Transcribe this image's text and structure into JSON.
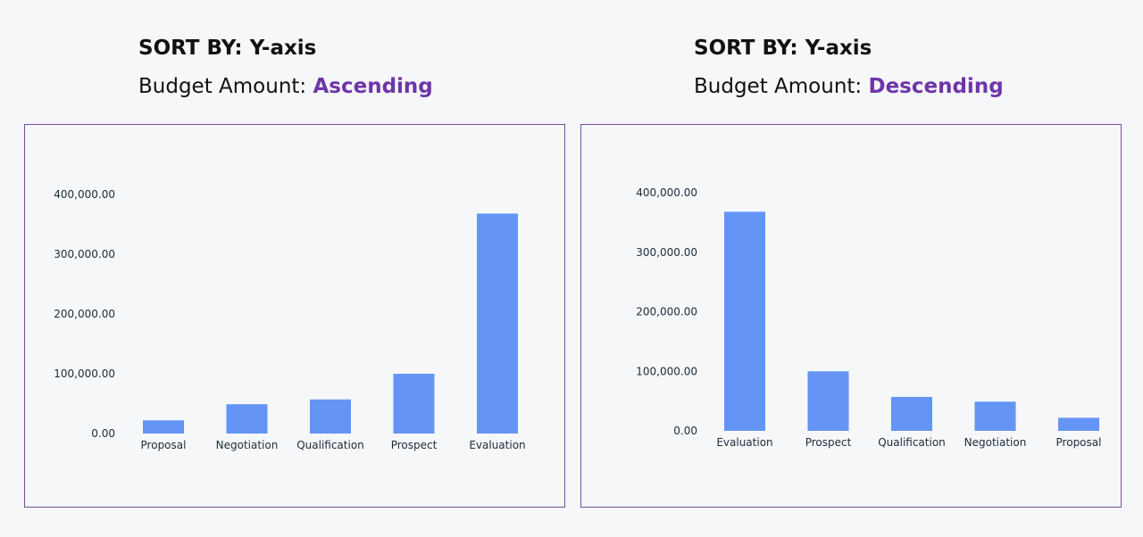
{
  "colors": {
    "accent": "#6f35a8",
    "bar": "#6495f5",
    "border": "#7a4e9b",
    "text": "#111111",
    "axis_text": "#1d2b3a",
    "background": "#f5f7f9"
  },
  "left": {
    "sort_title": "SORT BY: Y-axis",
    "sort_label": "Budget Amount: ",
    "sort_order": "Ascending"
  },
  "right": {
    "sort_title": "SORT BY: Y-axis",
    "sort_label": "Budget Amount: ",
    "sort_order": "Descending"
  },
  "chart_data": [
    {
      "type": "bar",
      "title": "",
      "xlabel": "",
      "ylabel": "",
      "categories": [
        "Proposal",
        "Negotiation",
        "Qualification",
        "Prospect",
        "Evaluation"
      ],
      "values": [
        22000,
        49000,
        57000,
        100000,
        368000
      ],
      "ylim": [
        0,
        400000
      ],
      "yticks": [
        0,
        100000,
        200000,
        300000,
        400000
      ],
      "ytick_labels": [
        "0.00",
        "100,000.00",
        "200,000.00",
        "300,000.00",
        "400,000.00"
      ],
      "grid": false,
      "legend": "none"
    },
    {
      "type": "bar",
      "title": "",
      "xlabel": "",
      "ylabel": "",
      "categories": [
        "Evaluation",
        "Prospect",
        "Qualification",
        "Negotiation",
        "Proposal"
      ],
      "values": [
        368000,
        100000,
        57000,
        49000,
        22000
      ],
      "ylim": [
        0,
        400000
      ],
      "yticks": [
        0,
        100000,
        200000,
        300000,
        400000
      ],
      "ytick_labels": [
        "0.00",
        "100,000.00",
        "200,000.00",
        "300,000.00",
        "400,000.00"
      ],
      "grid": false,
      "legend": "none"
    }
  ]
}
